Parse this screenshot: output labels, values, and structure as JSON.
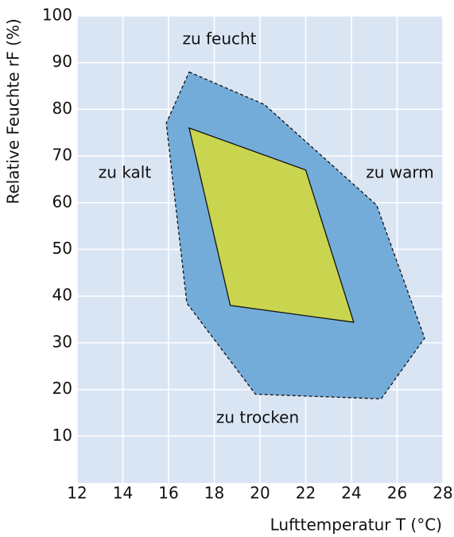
{
  "chart_data": {
    "type": "polygon",
    "xlabel": "Lufttemperatur T (°C)",
    "ylabel": "Relative Feuchte rF (%)",
    "xlim": [
      12,
      28
    ],
    "xticks": [
      12,
      14,
      16,
      18,
      20,
      22,
      24,
      26,
      28
    ],
    "ylim": [
      0,
      100
    ],
    "yticks": [
      10,
      20,
      30,
      40,
      50,
      60,
      70,
      80,
      90,
      100
    ],
    "grid": true,
    "background": "#dae5f4",
    "series": [
      {
        "color": "#74acd9",
        "line_style": "dashed",
        "x": [
          16.9,
          20.2,
          25.1,
          27.2,
          25.3,
          19.8,
          16.8,
          15.9
        ],
        "values": [
          88,
          81,
          59.5,
          31,
          18,
          19,
          38.5,
          77
        ]
      },
      {
        "color": "#c9d54f",
        "line_style": "solid",
        "x": [
          16.9,
          22.0,
          24.1,
          18.7
        ],
        "values": [
          76,
          67,
          34.4,
          38
        ]
      }
    ],
    "annotations": [
      "zu feucht",
      "zu kalt",
      "zu warm",
      "zu trocken"
    ]
  }
}
